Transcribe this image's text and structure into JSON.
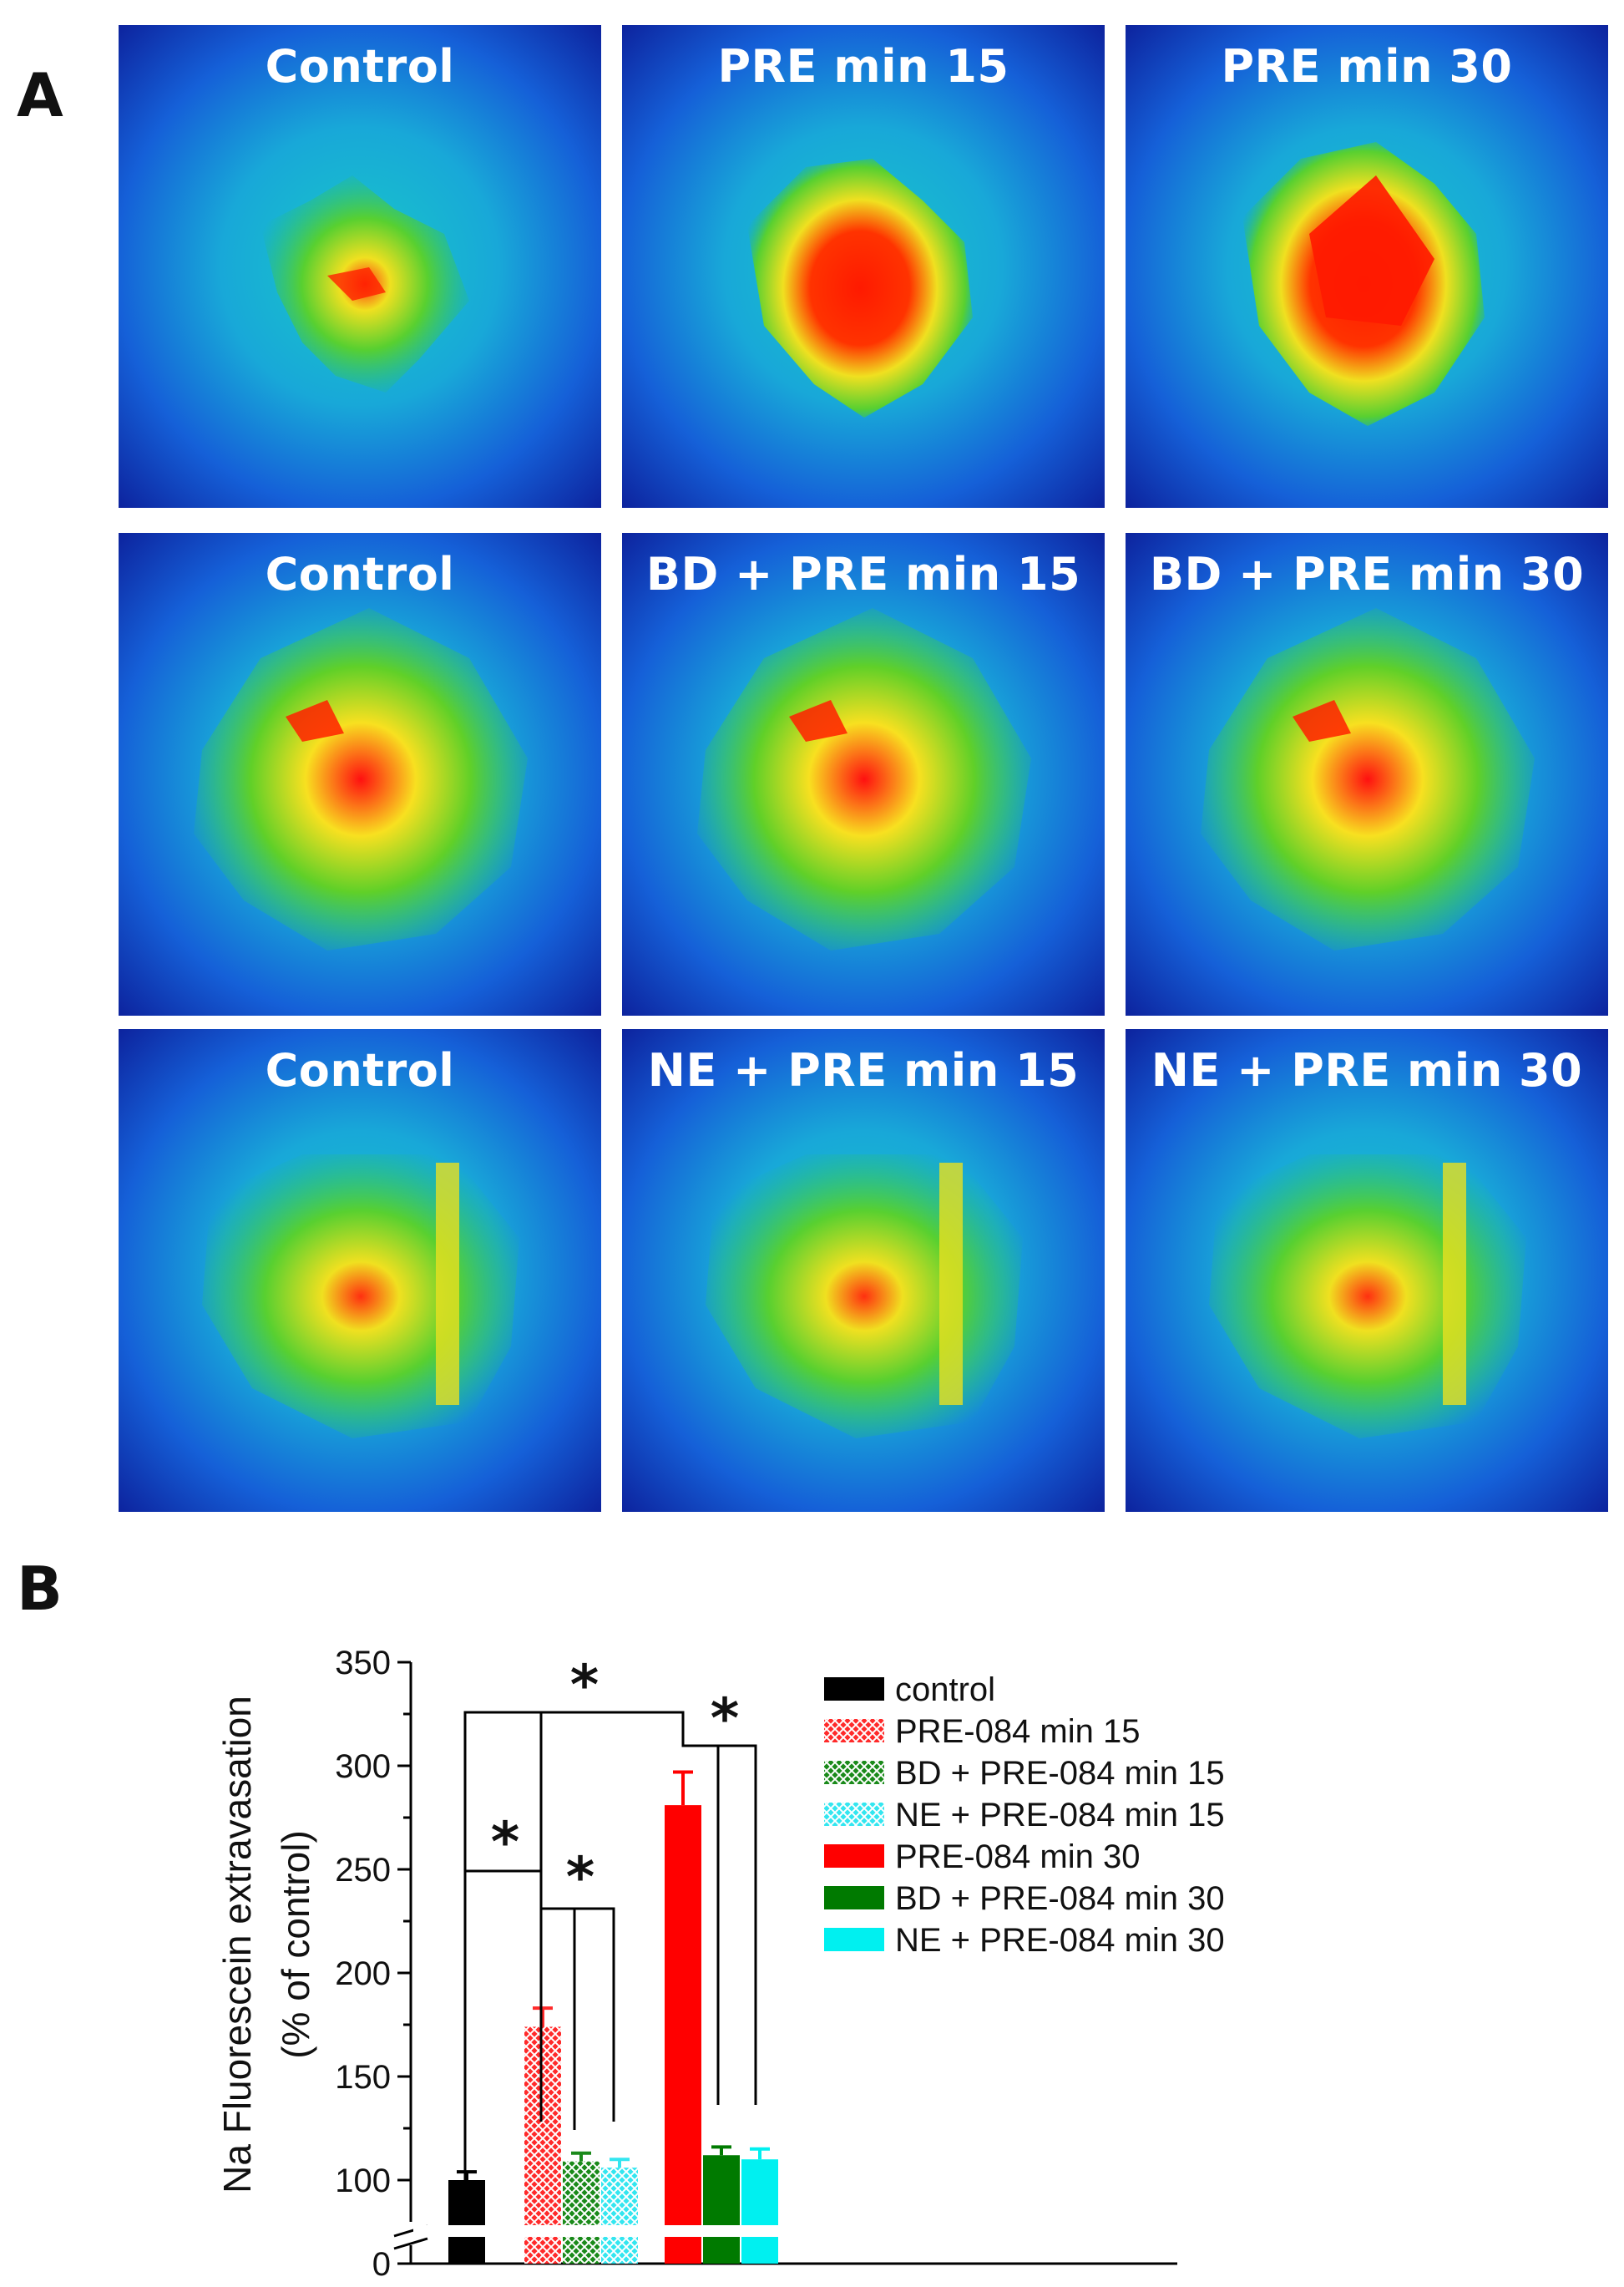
{
  "panels": {
    "a": "A",
    "b": "B"
  },
  "images": [
    {
      "label": "Control",
      "intensity": "low"
    },
    {
      "label": "PRE min 15",
      "intensity": "high"
    },
    {
      "label": "PRE min 30",
      "intensity": "very-high"
    },
    {
      "label": "Control",
      "intensity": "medium"
    },
    {
      "label": "BD + PRE min 15",
      "intensity": "medium"
    },
    {
      "label": "BD + PRE min 30",
      "intensity": "medium"
    },
    {
      "label": "Control",
      "intensity": "low"
    },
    {
      "label": "NE + PRE min 15",
      "intensity": "low"
    },
    {
      "label": "NE + PRE min 30",
      "intensity": "low"
    }
  ],
  "chart_data": {
    "type": "bar",
    "ylabel_line1": "Na Fluorescein extravasation",
    "ylabel_line2": "(% of control)",
    "ylim": [
      0,
      350
    ],
    "axis_break": {
      "from": 0,
      "to": 82
    },
    "yticks": [
      0,
      100,
      150,
      200,
      250,
      300,
      350
    ],
    "series": [
      {
        "name": "control",
        "value": 100,
        "error": 4,
        "color": "#000000",
        "pattern": "solid",
        "group": 0
      },
      {
        "name": "PRE-084 min 15",
        "value": 174,
        "error": 9,
        "color": "#ff2a2a",
        "pattern": "hatched",
        "group": 1
      },
      {
        "name": "BD + PRE-084 min 15",
        "value": 109,
        "error": 4,
        "color": "#1a8a1a",
        "pattern": "hatched",
        "group": 1
      },
      {
        "name": "NE + PRE-084 min 15",
        "value": 106,
        "error": 4,
        "color": "#33e6f0",
        "pattern": "hatched",
        "group": 1
      },
      {
        "name": "PRE-084 min 30",
        "value": 281,
        "error": 16,
        "color": "#ff0000",
        "pattern": "solid",
        "group": 2
      },
      {
        "name": "BD + PRE-084 min 30",
        "value": 112,
        "error": 4,
        "color": "#007a00",
        "pattern": "solid",
        "group": 2
      },
      {
        "name": "NE + PRE-084 min 30",
        "value": 110,
        "error": 5,
        "color": "#00f0f0",
        "pattern": "solid",
        "group": 2
      }
    ],
    "significance": [
      "*",
      "*",
      "*",
      "*"
    ]
  }
}
